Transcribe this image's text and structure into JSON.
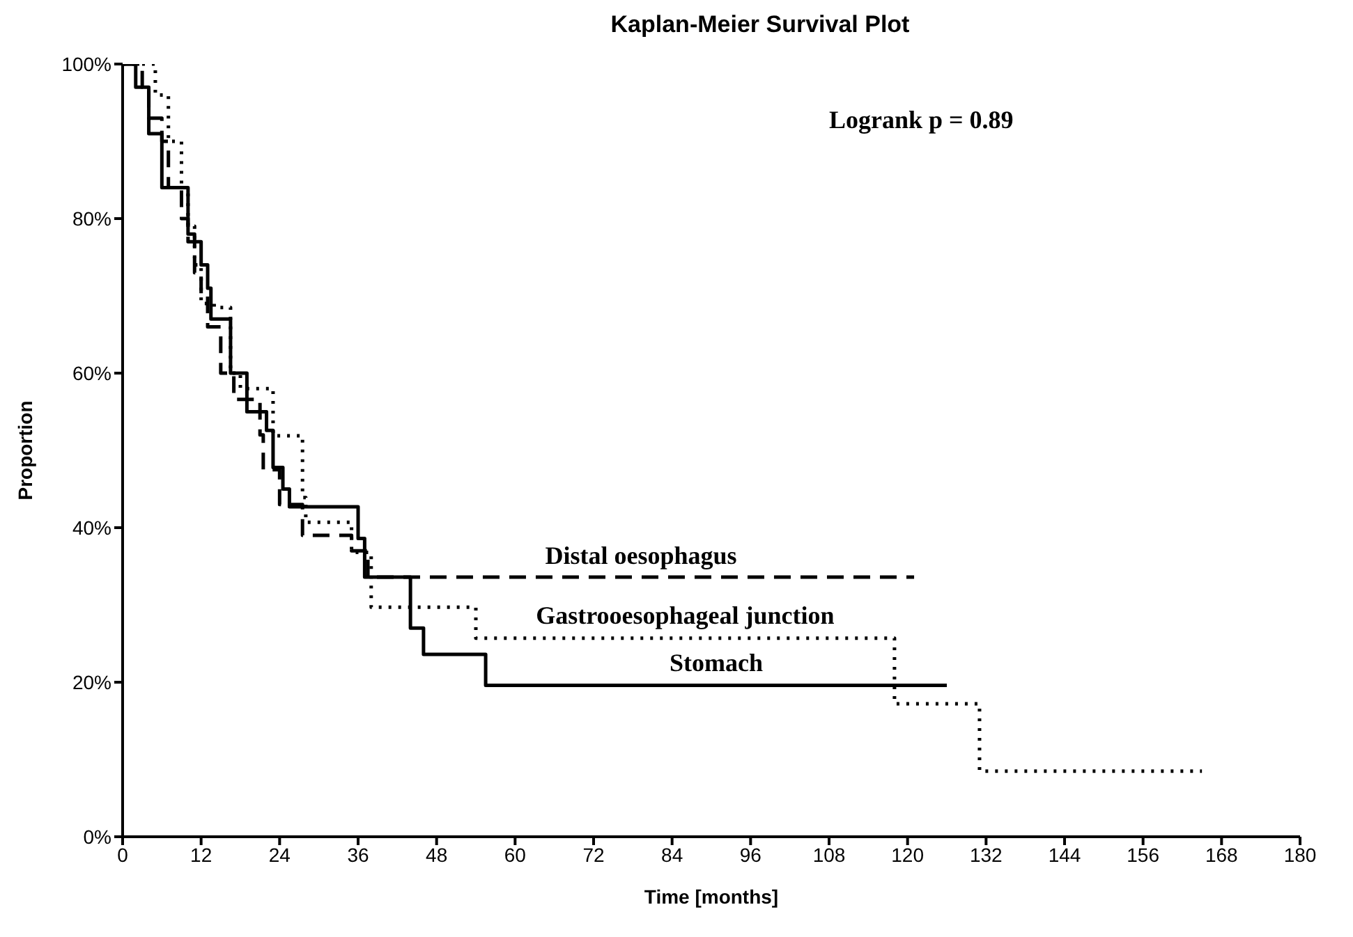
{
  "chart_data": {
    "type": "step",
    "title": "Kaplan-Meier Survival Plot",
    "xlabel": "Time [months]",
    "ylabel": "Proportion",
    "annotations": [
      "Logrank p = 0.89"
    ],
    "xlim": [
      0,
      180
    ],
    "xticks": [
      0,
      12,
      24,
      36,
      48,
      60,
      72,
      84,
      96,
      108,
      120,
      132,
      144,
      156,
      168,
      180
    ],
    "ylim": [
      0,
      100
    ],
    "yticks": [
      {
        "value": 0,
        "label": "0%"
      },
      {
        "value": 20,
        "label": "20%"
      },
      {
        "value": 40,
        "label": "40%"
      },
      {
        "value": 60,
        "label": "60%"
      },
      {
        "value": 80,
        "label": "80%"
      },
      {
        "value": 100,
        "label": "100%"
      }
    ],
    "grid": false,
    "legend": false,
    "marker": "none",
    "series": [
      {
        "name": "Distal oesophagus",
        "color": "#000000",
        "line_style": "dashed",
        "x": [
          0,
          3,
          4,
          6,
          7,
          9,
          10,
          11,
          12,
          13,
          15,
          17,
          21,
          21.5,
          24,
          27.5,
          35,
          37.5,
          121
        ],
        "values": [
          100,
          97,
          93,
          90,
          84,
          80,
          77,
          73,
          70,
          66,
          60,
          56.6,
          52,
          47.5,
          43,
          39,
          37,
          33.6,
          33.6
        ]
      },
      {
        "name": "Gastrooesophageal junction",
        "color": "#000000",
        "line_style": "dotted",
        "x": [
          0,
          5,
          7,
          9,
          10,
          11,
          12,
          14,
          16.5,
          18,
          23,
          27.5,
          28,
          35,
          38,
          54,
          118,
          131,
          165
        ],
        "values": [
          100,
          96,
          90,
          84,
          79,
          74,
          69,
          68.5,
          60,
          58,
          51.9,
          43.9,
          40.7,
          36.8,
          29.7,
          25.7,
          17.2,
          8.5,
          8.5
        ]
      },
      {
        "name": "Stomach",
        "color": "#000000",
        "line_style": "solid",
        "x": [
          0,
          2,
          4,
          6,
          10,
          11,
          12,
          13,
          13.5,
          16.5,
          19,
          22,
          23,
          24.5,
          25.5,
          36,
          37,
          44,
          46,
          55.5,
          126
        ],
        "values": [
          100,
          97,
          91,
          84,
          78,
          77,
          74,
          71,
          67,
          60,
          55,
          52.6,
          47.8,
          45,
          42.7,
          38.6,
          33.6,
          27,
          23.6,
          19.6,
          19.6
        ]
      }
    ]
  }
}
